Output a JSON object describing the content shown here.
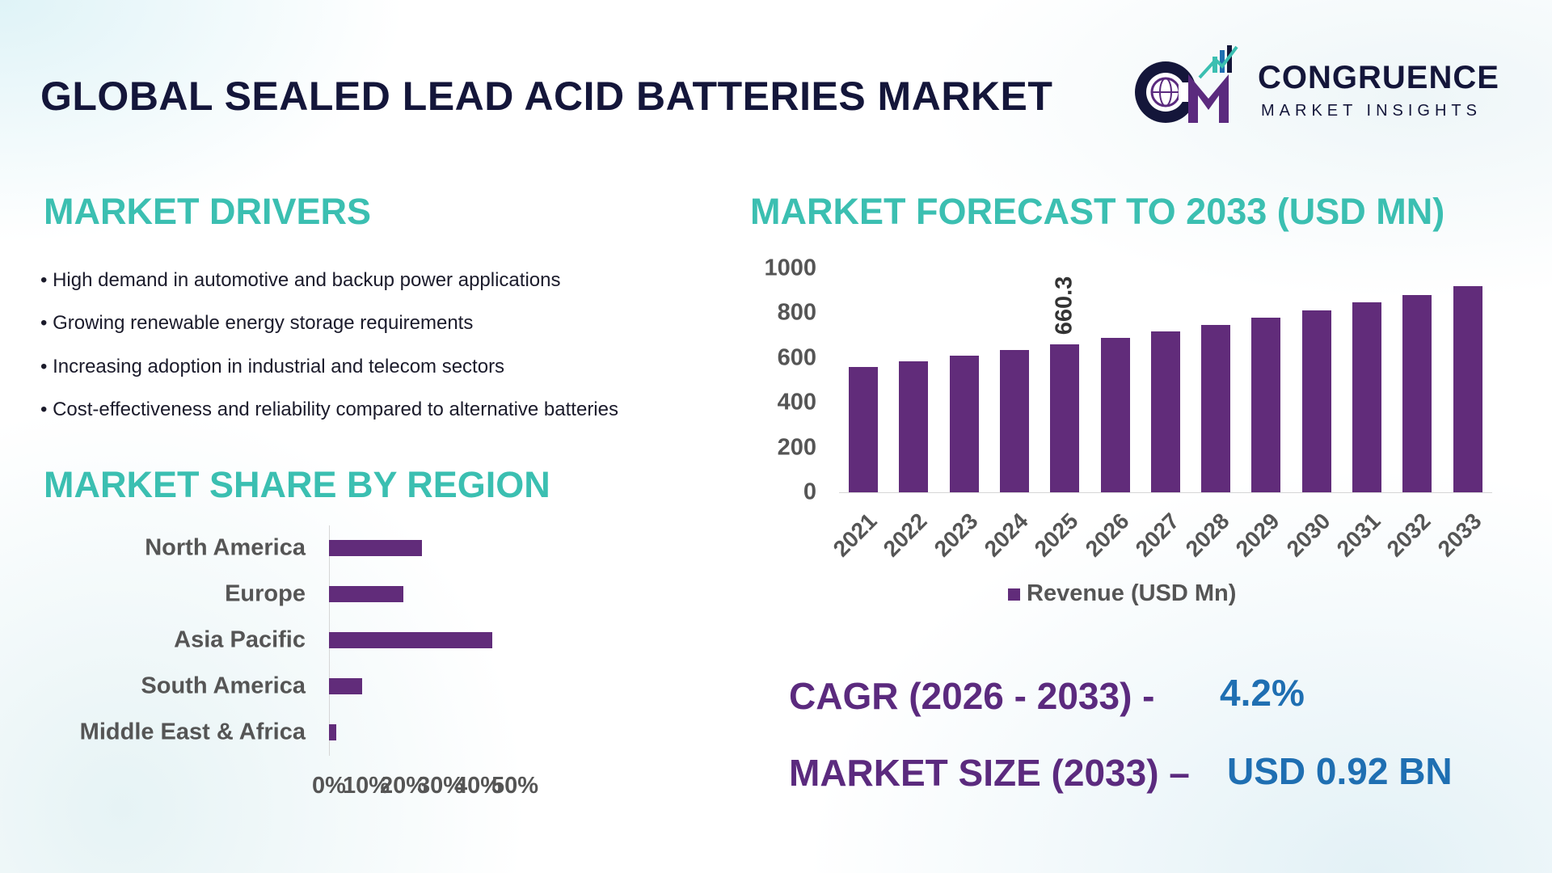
{
  "header": {
    "title": "GLOBAL SEALED LEAD ACID BATTERIES MARKET",
    "logo": {
      "name": "CONGRUENCE",
      "tagline": "MARKET INSIGHTS",
      "icon": "globe-cm-logo"
    }
  },
  "drivers": {
    "heading": "MARKET DRIVERS",
    "items": [
      "• High demand in automotive and backup power applications",
      "• Growing renewable energy storage requirements",
      "• Increasing adoption in industrial and telecom sectors",
      "• Cost-effectiveness and reliability compared to alternative batteries"
    ]
  },
  "region": {
    "heading": "MARKET SHARE BY REGION"
  },
  "forecast": {
    "heading": "MARKET FORECAST TO 2033 (USD MN)"
  },
  "stats": {
    "cagr_label": "CAGR (2026 - 2033) -",
    "cagr_value": "4.2%",
    "size_label": "MARKET SIZE (2033) –",
    "size_value": "USD 0.92 BN"
  },
  "colors": {
    "bar": "#612c7a",
    "heading": "#3bbfb1",
    "title": "#14163a",
    "stat_label": "#5b2a7e",
    "stat_value": "#1f6fb2",
    "axis_text": "#555555"
  },
  "chart_data": [
    {
      "type": "bar",
      "orientation": "horizontal",
      "categories": [
        "North America",
        "Europe",
        "Asia Pacific",
        "South America",
        "Middle East & Africa"
      ],
      "values": [
        25,
        20,
        44,
        9,
        2
      ],
      "unit": "%",
      "xlim": [
        0,
        50
      ],
      "xticks": [
        "0%",
        "10%",
        "20%",
        "30%",
        "40%",
        "50%"
      ],
      "grid": false
    },
    {
      "type": "bar",
      "categories": [
        "2021",
        "2022",
        "2023",
        "2024",
        "2025",
        "2026",
        "2027",
        "2028",
        "2029",
        "2030",
        "2031",
        "2032",
        "2033"
      ],
      "series": [
        {
          "name": "Revenue (USD Mn)",
          "values": [
            560,
            586,
            611,
            636,
            660.3,
            690,
            719,
            748,
            781,
            813,
            849,
            882,
            922
          ]
        }
      ],
      "data_labels": [
        {
          "category": "2025",
          "text": "660.3"
        }
      ],
      "ylim": [
        0,
        1000
      ],
      "yticks": [
        "0",
        "200",
        "400",
        "600",
        "800",
        "1000"
      ],
      "legend": "bottom",
      "grid": false
    }
  ]
}
